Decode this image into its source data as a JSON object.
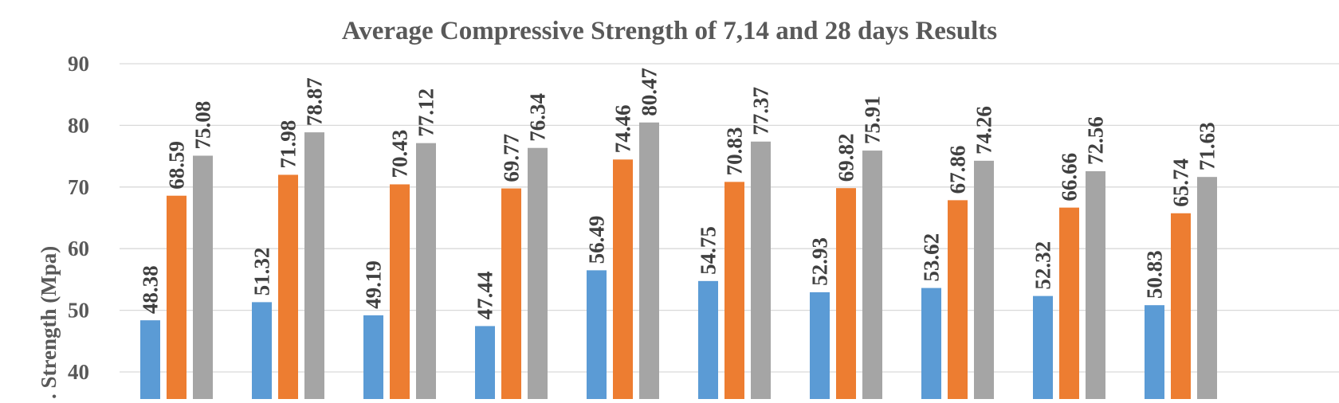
{
  "chart_data": {
    "type": "bar",
    "title": "Average Compressive Strength of 7,14 and 28 days Results",
    "xlabel": "",
    "ylabel": "Comp. Strength (Mpa)",
    "ylabel_visible": ". Strength (Mpa)",
    "ylim": [
      40,
      90
    ],
    "yticks": [
      "40",
      "50",
      "60",
      "70",
      "80",
      "90"
    ],
    "grid": true,
    "categories": [
      "",
      "",
      "",
      "",
      "",
      "",
      "",
      "",
      "",
      ""
    ],
    "series": [
      {
        "color": "#5b9bd5",
        "values": [
          48.38,
          51.32,
          49.19,
          47.44,
          56.49,
          54.75,
          52.93,
          53.62,
          52.32,
          50.83
        ],
        "labels": [
          "48.38",
          "51.32",
          "49.19",
          "47.44",
          "56.49",
          "54.75",
          "52.93",
          "53.62",
          "52.32",
          "50.83"
        ]
      },
      {
        "color": "#ed7d31",
        "values": [
          68.59,
          71.98,
          70.43,
          69.77,
          74.46,
          70.83,
          69.82,
          67.86,
          66.66,
          65.74
        ],
        "labels": [
          "68.59",
          "71.98",
          "70.43",
          "69.77",
          "74.46",
          "70.83",
          "69.82",
          "67.86",
          "66.66",
          "65.74"
        ]
      },
      {
        "color": "#a5a5a5",
        "values": [
          75.08,
          78.87,
          77.12,
          76.34,
          80.47,
          77.37,
          75.91,
          74.26,
          72.56,
          71.63
        ],
        "labels": [
          "75.08",
          "78.87",
          "77.12",
          "76.34",
          "80.47",
          "77.37",
          "75.91",
          "74.26",
          "72.56",
          "71.63"
        ]
      }
    ]
  }
}
